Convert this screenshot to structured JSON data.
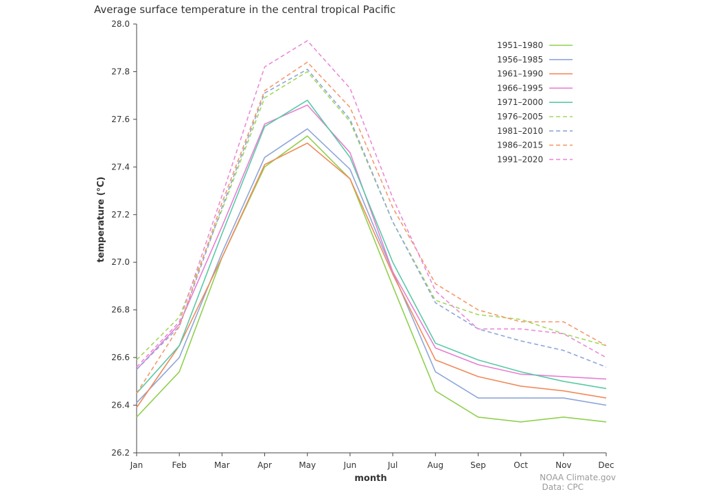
{
  "chart_data": {
    "type": "line",
    "title": "Average surface temperature in the central tropical Pacific",
    "xlabel": "month",
    "ylabel": "temperature (°C)",
    "categories": [
      "Jan",
      "Feb",
      "Mar",
      "Apr",
      "May",
      "Jun",
      "Jul",
      "Aug",
      "Sep",
      "Oct",
      "Nov",
      "Dec"
    ],
    "ylim": [
      26.2,
      28.0
    ],
    "yticks": [
      "26.2",
      "26.4",
      "26.6",
      "26.8",
      "27.0",
      "27.2",
      "27.4",
      "27.6",
      "27.8",
      "28.0"
    ],
    "grid": false,
    "legend_position": "top-right",
    "series": [
      {
        "name": "1951–1980",
        "color": "#8fd04e",
        "dashed": false,
        "values": [
          26.35,
          26.54,
          27.02,
          27.4,
          27.53,
          27.35,
          26.9,
          26.46,
          26.35,
          26.33,
          26.35,
          26.33
        ]
      },
      {
        "name": "1956–1985",
        "color": "#8ea6d9",
        "dashed": false,
        "values": [
          26.41,
          26.6,
          27.04,
          27.44,
          27.56,
          27.39,
          26.96,
          26.54,
          26.43,
          26.43,
          26.43,
          26.4
        ]
      },
      {
        "name": "1961–1990",
        "color": "#f18a5b",
        "dashed": false,
        "values": [
          26.39,
          26.65,
          27.02,
          27.41,
          27.5,
          27.35,
          26.95,
          26.59,
          26.52,
          26.48,
          26.46,
          26.43
        ]
      },
      {
        "name": "1966–1995",
        "color": "#e67fd3",
        "dashed": false,
        "values": [
          26.55,
          26.74,
          27.15,
          27.58,
          27.66,
          27.46,
          26.96,
          26.64,
          26.57,
          26.53,
          26.52,
          26.51
        ]
      },
      {
        "name": "1971–2000",
        "color": "#59c9a5",
        "dashed": false,
        "values": [
          26.45,
          26.65,
          27.12,
          27.57,
          27.68,
          27.44,
          27.0,
          26.66,
          26.59,
          26.54,
          26.5,
          26.47
        ]
      },
      {
        "name": "1976–2005",
        "color": "#a2d85a",
        "dashed": true,
        "values": [
          26.59,
          26.77,
          27.22,
          27.69,
          27.8,
          27.59,
          27.17,
          26.84,
          26.78,
          26.76,
          26.7,
          26.65
        ]
      },
      {
        "name": "1981–2010",
        "color": "#8ea6d9",
        "dashed": true,
        "values": [
          26.55,
          26.73,
          27.23,
          27.71,
          27.81,
          27.6,
          27.17,
          26.83,
          26.72,
          26.67,
          26.63,
          26.56
        ]
      },
      {
        "name": "1986–2015",
        "color": "#f4996a",
        "dashed": true,
        "values": [
          26.45,
          26.73,
          27.25,
          27.72,
          27.84,
          27.65,
          27.23,
          26.91,
          26.8,
          26.75,
          26.75,
          26.65
        ]
      },
      {
        "name": "1991–2020",
        "color": "#e98ad8",
        "dashed": true,
        "values": [
          26.56,
          26.75,
          27.28,
          27.82,
          27.93,
          27.73,
          27.27,
          26.88,
          26.72,
          26.72,
          26.7,
          26.6
        ]
      }
    ]
  },
  "credits": {
    "line1": "NOAA Climate.gov",
    "line2": "Data: CPC"
  }
}
